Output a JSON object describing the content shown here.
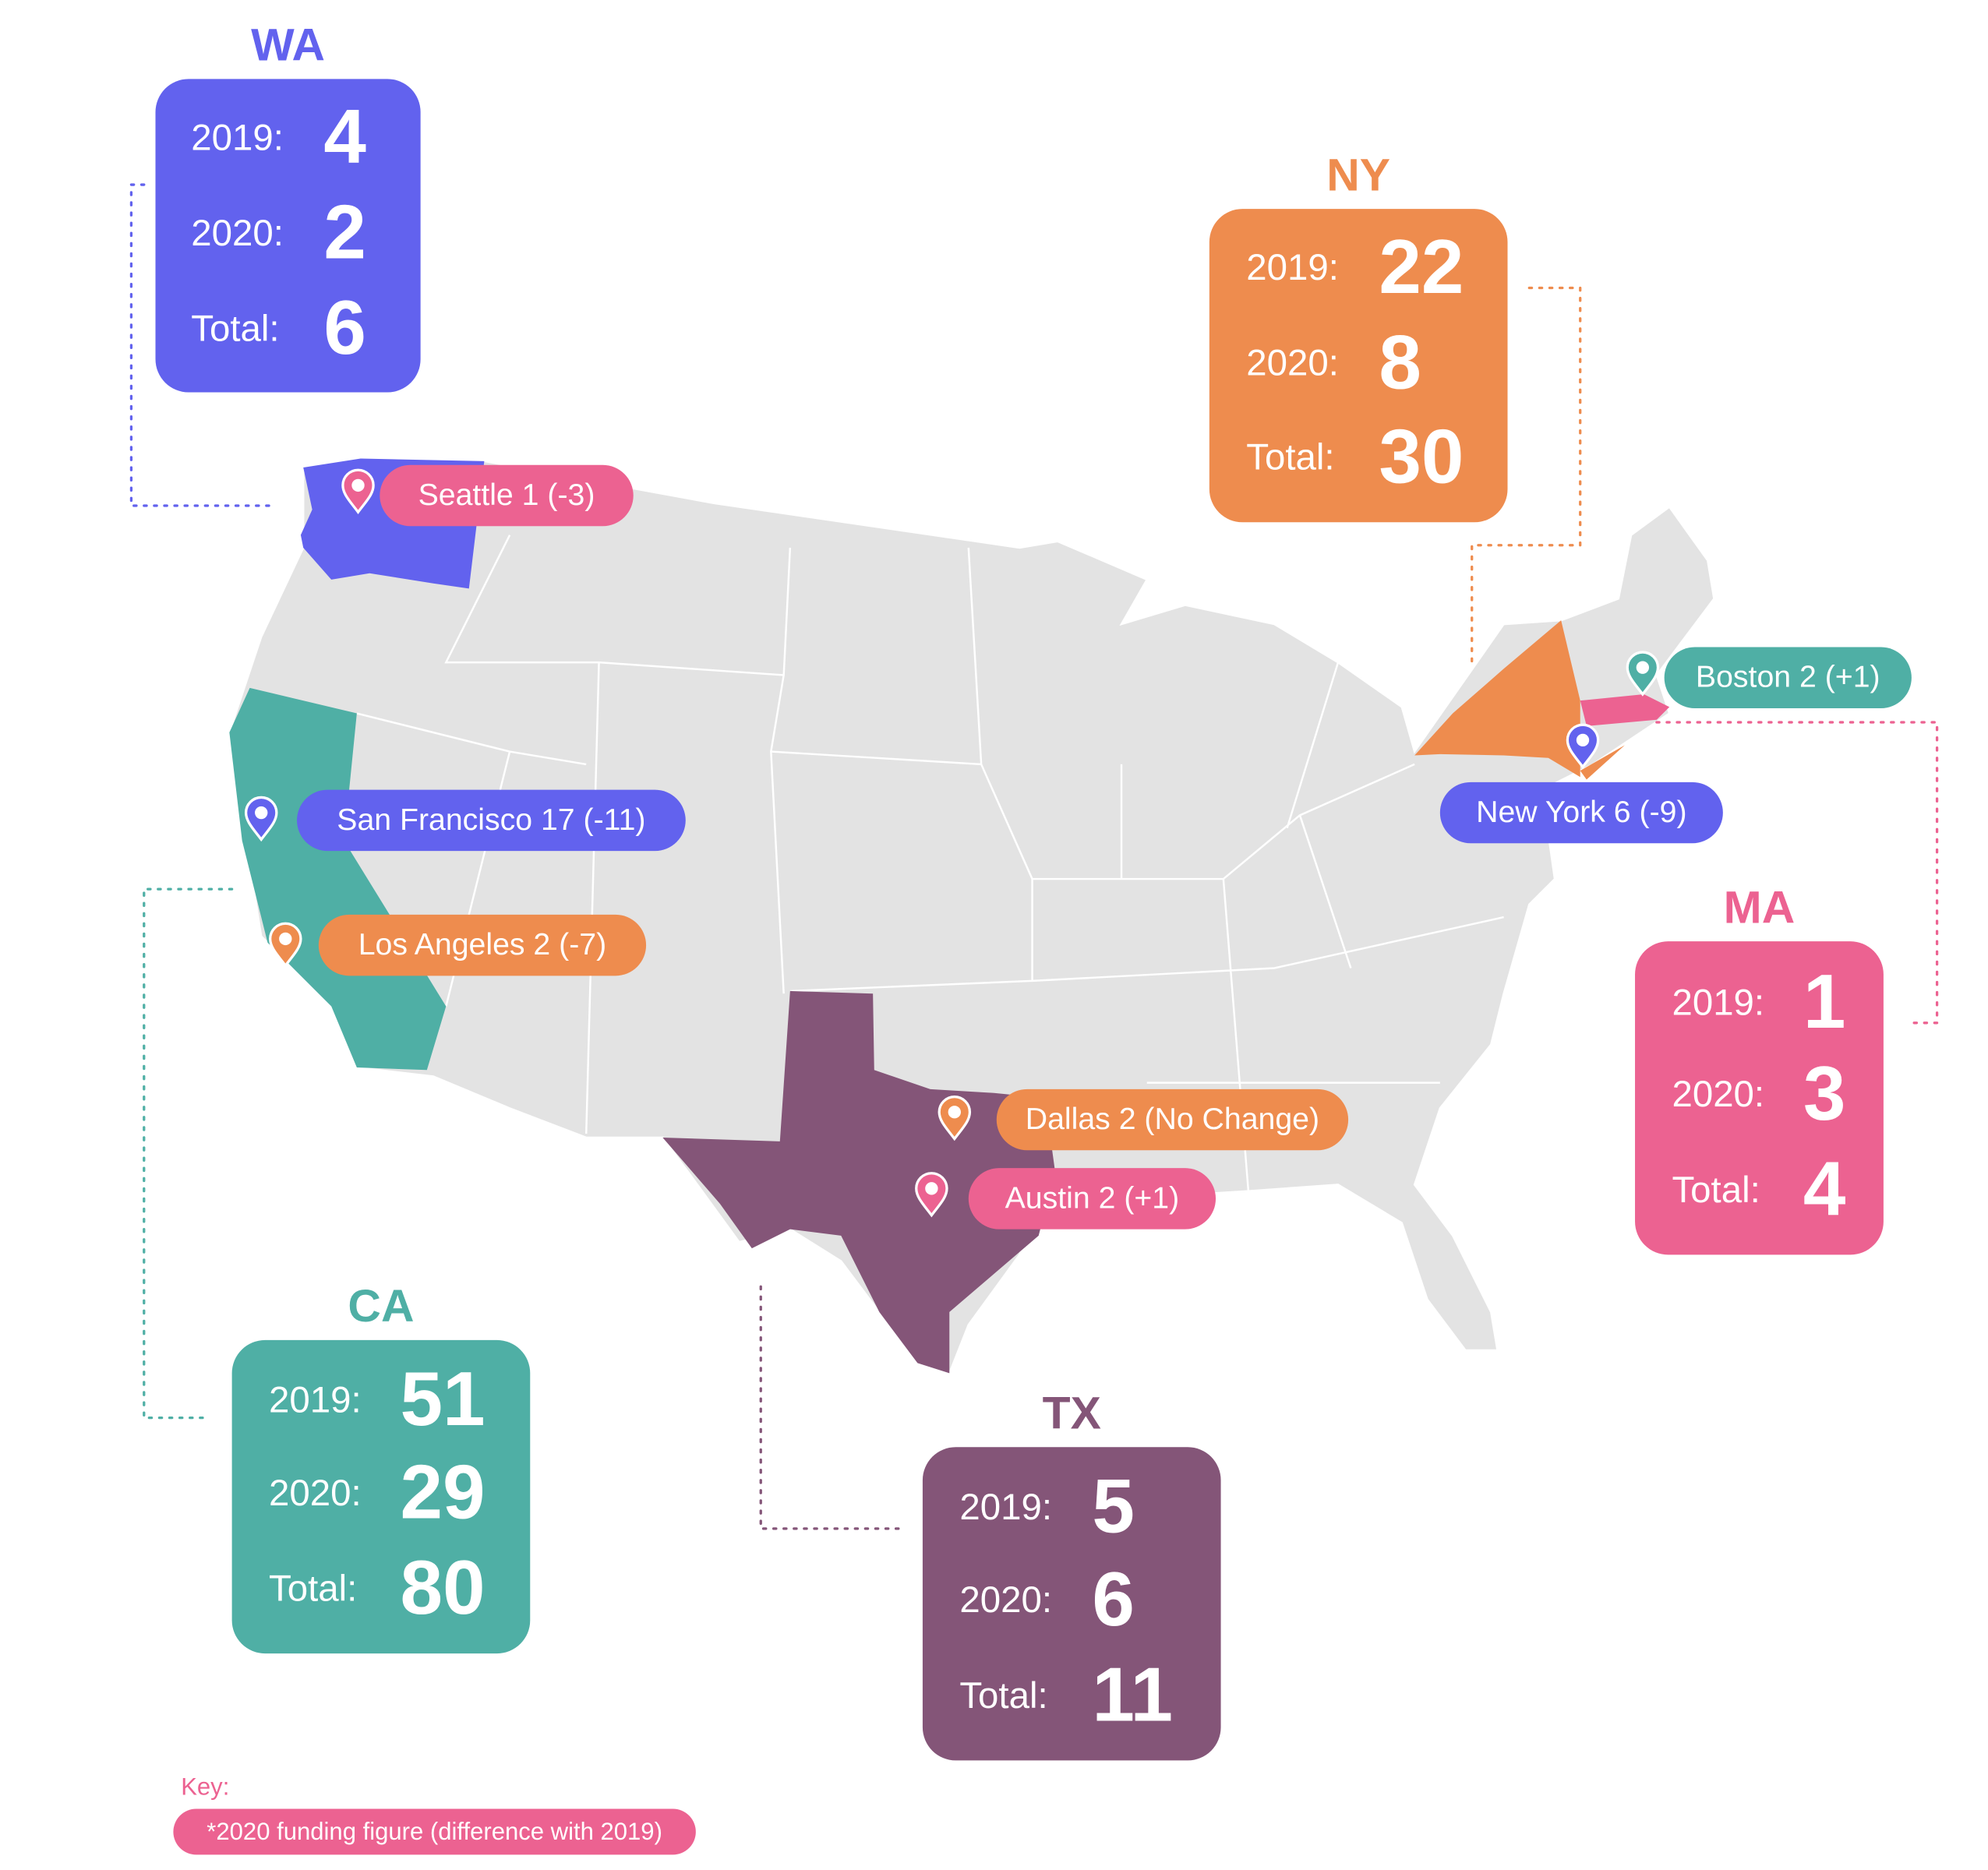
{
  "states": [
    {
      "code": "WA",
      "color": "#6262ee",
      "rows": [
        {
          "label": "2019:",
          "value": 4
        },
        {
          "label": "2020:",
          "value": 2
        },
        {
          "label": "Total:",
          "value": 6
        }
      ]
    },
    {
      "code": "NY",
      "color": "#ee8c4e",
      "rows": [
        {
          "label": "2019:",
          "value": 22
        },
        {
          "label": "2020:",
          "value": 8
        },
        {
          "label": "Total:",
          "value": 30
        }
      ]
    },
    {
      "code": "MA",
      "color": "#ec6291",
      "rows": [
        {
          "label": "2019:",
          "value": 1
        },
        {
          "label": "2020:",
          "value": 3
        },
        {
          "label": "Total:",
          "value": 4
        }
      ]
    },
    {
      "code": "CA",
      "color": "#4fafa5",
      "rows": [
        {
          "label": "2019:",
          "value": 51
        },
        {
          "label": "2020:",
          "value": 29
        },
        {
          "label": "Total:",
          "value": 80
        }
      ]
    },
    {
      "code": "TX",
      "color": "#845578",
      "rows": [
        {
          "label": "2019:",
          "value": 5
        },
        {
          "label": "2020:",
          "value": 6
        },
        {
          "label": "Total:",
          "value": 11
        }
      ]
    }
  ],
  "cities": [
    {
      "label": "Seattle 1 (-3)",
      "color": "#ec6291"
    },
    {
      "label": "San Francisco 17 (-11)",
      "color": "#6262ee"
    },
    {
      "label": "Los Angeles 2 (-7)",
      "color": "#ee8c4e"
    },
    {
      "label": "Dallas 2 (No Change)",
      "color": "#ee8c4e"
    },
    {
      "label": "Austin 2 (+1)",
      "color": "#ec6291"
    },
    {
      "label": "Boston 2 (+1)",
      "color": "#4fafa5"
    },
    {
      "label": "New York 6 (-9)",
      "color": "#6262ee"
    }
  ],
  "key": {
    "title": "Key:",
    "note": "*2020 funding figure (difference with 2019)"
  }
}
